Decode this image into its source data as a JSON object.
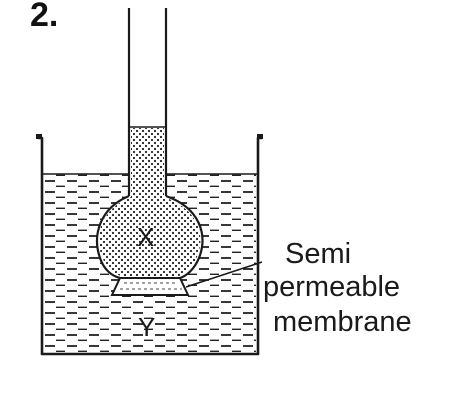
{
  "question_number": "2.",
  "labels": {
    "solution_in_funnel": "X",
    "solution_in_beaker": "Y",
    "membrane_line1": "Semi",
    "membrane_line2": "permeable",
    "membrane_line3": "membrane"
  },
  "colors": {
    "ink": "#1a1a1a",
    "background": "#ffffff"
  }
}
